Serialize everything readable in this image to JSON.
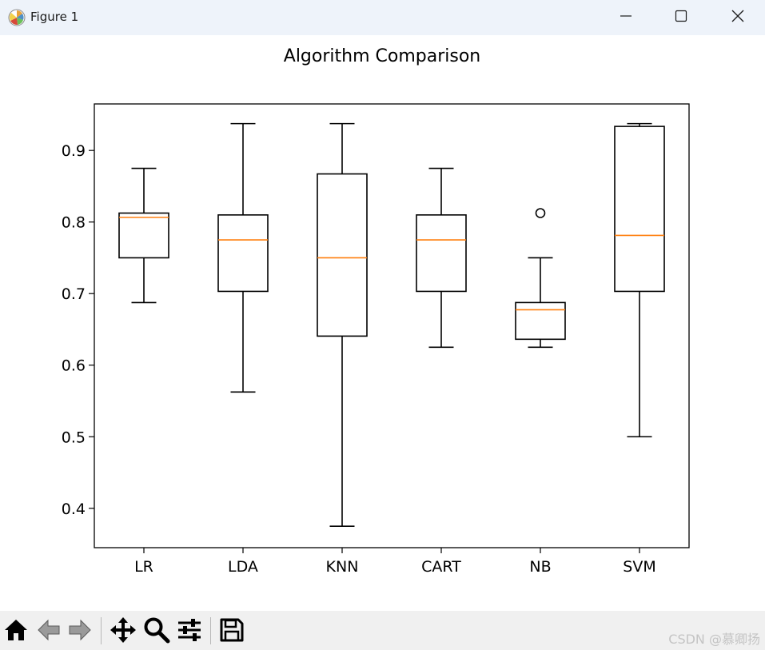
{
  "window": {
    "title": "Figure 1",
    "icons": [
      "matplotlib-logo-icon",
      "minimize-icon",
      "maximize-icon",
      "close-icon"
    ]
  },
  "toolbar": {
    "icons": [
      "home-icon",
      "back-arrow-icon",
      "forward-arrow-icon",
      "pan-move-icon",
      "zoom-magnifier-icon",
      "configure-subplots-icon",
      "save-icon"
    ]
  },
  "watermark": "CSDN @慕卿扬",
  "colors": {
    "median": "#ff7f0e",
    "box": "#000000",
    "titlebar": "#eef3fa",
    "toolbar": "#f0f0f0"
  },
  "chart_data": {
    "type": "boxplot",
    "title": "Algorithm Comparison",
    "xlabel": "",
    "ylabel": "",
    "categories": [
      "LR",
      "LDA",
      "KNN",
      "CART",
      "NB",
      "SVM"
    ],
    "ylim": [
      0.345,
      0.965
    ],
    "yticks": [
      0.4,
      0.5,
      0.6,
      0.7,
      0.8,
      0.9
    ],
    "ytick_labels": [
      "0.4",
      "0.5",
      "0.6",
      "0.7",
      "0.8",
      "0.9"
    ],
    "grid": false,
    "boxes": [
      {
        "label": "LR",
        "whisker_low": 0.6875,
        "q1": 0.75,
        "median": 0.8065,
        "q3": 0.8125,
        "whisker_high": 0.875,
        "outliers": []
      },
      {
        "label": "LDA",
        "whisker_low": 0.5625,
        "q1": 0.7031,
        "median": 0.775,
        "q3": 0.8099,
        "whisker_high": 0.9375,
        "outliers": []
      },
      {
        "label": "KNN",
        "whisker_low": 0.375,
        "q1": 0.6406,
        "median": 0.75,
        "q3": 0.8672,
        "whisker_high": 0.9375,
        "outliers": []
      },
      {
        "label": "CART",
        "whisker_low": 0.625,
        "q1": 0.7031,
        "median": 0.775,
        "q3": 0.8099,
        "whisker_high": 0.875,
        "outliers": []
      },
      {
        "label": "NB",
        "whisker_low": 0.625,
        "q1": 0.6362,
        "median": 0.6774,
        "q3": 0.6875,
        "whisker_high": 0.75,
        "outliers": [
          0.8125
        ]
      },
      {
        "label": "SVM",
        "whisker_low": 0.5,
        "q1": 0.7031,
        "median": 0.7813,
        "q3": 0.9336,
        "whisker_high": 0.9375,
        "outliers": []
      }
    ]
  }
}
